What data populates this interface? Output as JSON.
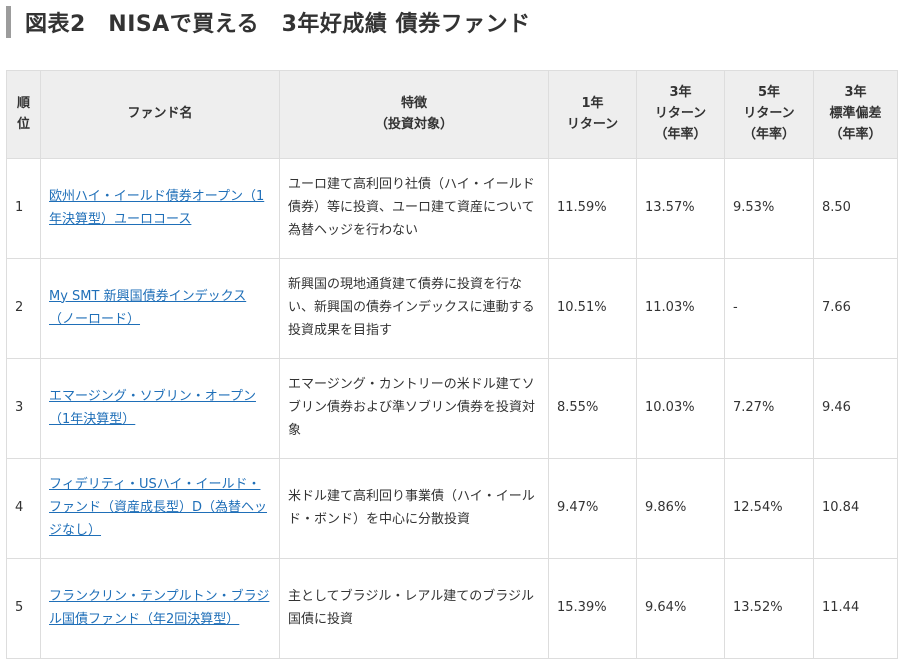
{
  "title": "図表2　NISAで買える　3年好成績 債券ファンド",
  "table": {
    "headers": [
      [
        "順",
        "位"
      ],
      [
        "ファンド名"
      ],
      [
        "特徴",
        "（投資対象）"
      ],
      [
        "1年",
        "リターン"
      ],
      [
        "3年",
        "リターン",
        "（年率）"
      ],
      [
        "5年",
        "リターン",
        "（年率）"
      ],
      [
        "3年",
        "標準偏差",
        "（年率）"
      ]
    ],
    "rows": [
      {
        "rank": "1",
        "fund": "欧州ハイ・イールド債券オープン（1年決算型）ユーロコース",
        "feature": "ユーロ建て高利回り社債（ハイ・イールド債券）等に投資、ユーロ建て資産について為替ヘッジを行わない",
        "ret1y": "11.59%",
        "ret3y": "13.57%",
        "ret5y": "9.53%",
        "sd3y": "8.50"
      },
      {
        "rank": "2",
        "fund": "My SMT 新興国債券インデックス（ノーロード）",
        "feature": "新興国の現地通貨建て債券に投資を行ない、新興国の債券インデックスに連動する投資成果を目指す",
        "ret1y": "10.51%",
        "ret3y": "11.03%",
        "ret5y": "-",
        "sd3y": "7.66"
      },
      {
        "rank": "3",
        "fund": "エマージング・ソブリン・オープン（1年決算型）",
        "feature": "エマージング・カントリーの米ドル建てソブリン債券および準ソブリン債券を投資対象",
        "ret1y": "8.55%",
        "ret3y": "10.03%",
        "ret5y": "7.27%",
        "sd3y": "9.46"
      },
      {
        "rank": "4",
        "fund": "フィデリティ・USハイ・イールド・ファンド（資産成長型）D（為替ヘッジなし）",
        "feature": "米ドル建て高利回り事業債（ハイ・イールド・ボンド）を中心に分散投資",
        "ret1y": "9.47%",
        "ret3y": "9.86%",
        "ret5y": "12.54%",
        "sd3y": "10.84"
      },
      {
        "rank": "5",
        "fund": "フランクリン・テンプルトン・ブラジル国債ファンド（年2回決算型）",
        "feature": "主としてブラジル・レアル建てのブラジル国債に投資",
        "ret1y": "15.39%",
        "ret3y": "9.64%",
        "ret5y": "13.52%",
        "sd3y": "11.44"
      }
    ]
  }
}
